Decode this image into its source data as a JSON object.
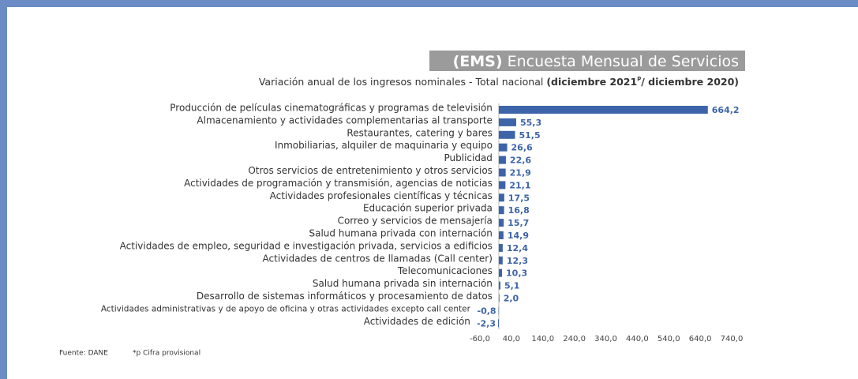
{
  "chart_data": {
    "type": "barh",
    "title_prefix": "(EMS)",
    "title": "Encuesta Mensual de Servicios",
    "subtitle": "Variación anual de los ingresos nominales - Total nacional",
    "period_start": "(diciembre 2021",
    "period_mark": "p",
    "period_end": "/ diciembre 2020)",
    "categories": [
      "Producción de películas cinematográficas y programas de televisión",
      "Almacenamiento y actividades complementarias al transporte",
      "Restaurantes, catering y bares",
      "Inmobiliarias, alquiler de maquinaria y equipo",
      "Publicidad",
      "Otros servicios de entretenimiento y otros servicios",
      "Actividades de programación y transmisión,  agencias de noticias",
      "Actividades profesionales científicas y técnicas",
      "Educación superior privada",
      "Correo y servicios de mensajería",
      "Salud humana privada con internación",
      "Actividades de empleo, seguridad e investigación privada, servicios a edificios",
      "Actividades de centros de llamadas (Call center)",
      "Telecomunicaciones",
      "Salud humana privada sin internación",
      "Desarrollo de sistemas informáticos y procesamiento de datos",
      "Actividades administrativas y de apoyo de oficina y otras actividades excepto call center",
      "Actividades de edición"
    ],
    "values": [
      664.2,
      55.3,
      51.5,
      26.6,
      22.6,
      21.9,
      21.1,
      17.5,
      16.8,
      15.7,
      14.9,
      12.4,
      12.3,
      10.3,
      5.1,
      2.0,
      -0.8,
      -2.3
    ],
    "value_labels": [
      "664,2",
      "55,3",
      "51,5",
      "26,6",
      "22,6",
      "21,9",
      "21,1",
      "17,5",
      "16,8",
      "15,7",
      "14,9",
      "12,4",
      "12,3",
      "10,3",
      "5,1",
      "2,0",
      "-0,8",
      "-2,3"
    ],
    "color": "#3d64a8",
    "xlim": [
      -60,
      740
    ],
    "xticks": [
      {
        "value": -60,
        "label": "-60,0"
      },
      {
        "value": 40,
        "label": "40,0"
      },
      {
        "value": 140,
        "label": "140,0"
      },
      {
        "value": 240,
        "label": "240,0"
      },
      {
        "value": 340,
        "label": "340,0"
      },
      {
        "value": 440,
        "label": "440,0"
      },
      {
        "value": 540,
        "label": "540,0"
      },
      {
        "value": 640,
        "label": "640,0"
      },
      {
        "value": 740,
        "label": "740,0"
      }
    ],
    "source": "Fuente: DANE",
    "note": "*p Cifra provisional"
  }
}
